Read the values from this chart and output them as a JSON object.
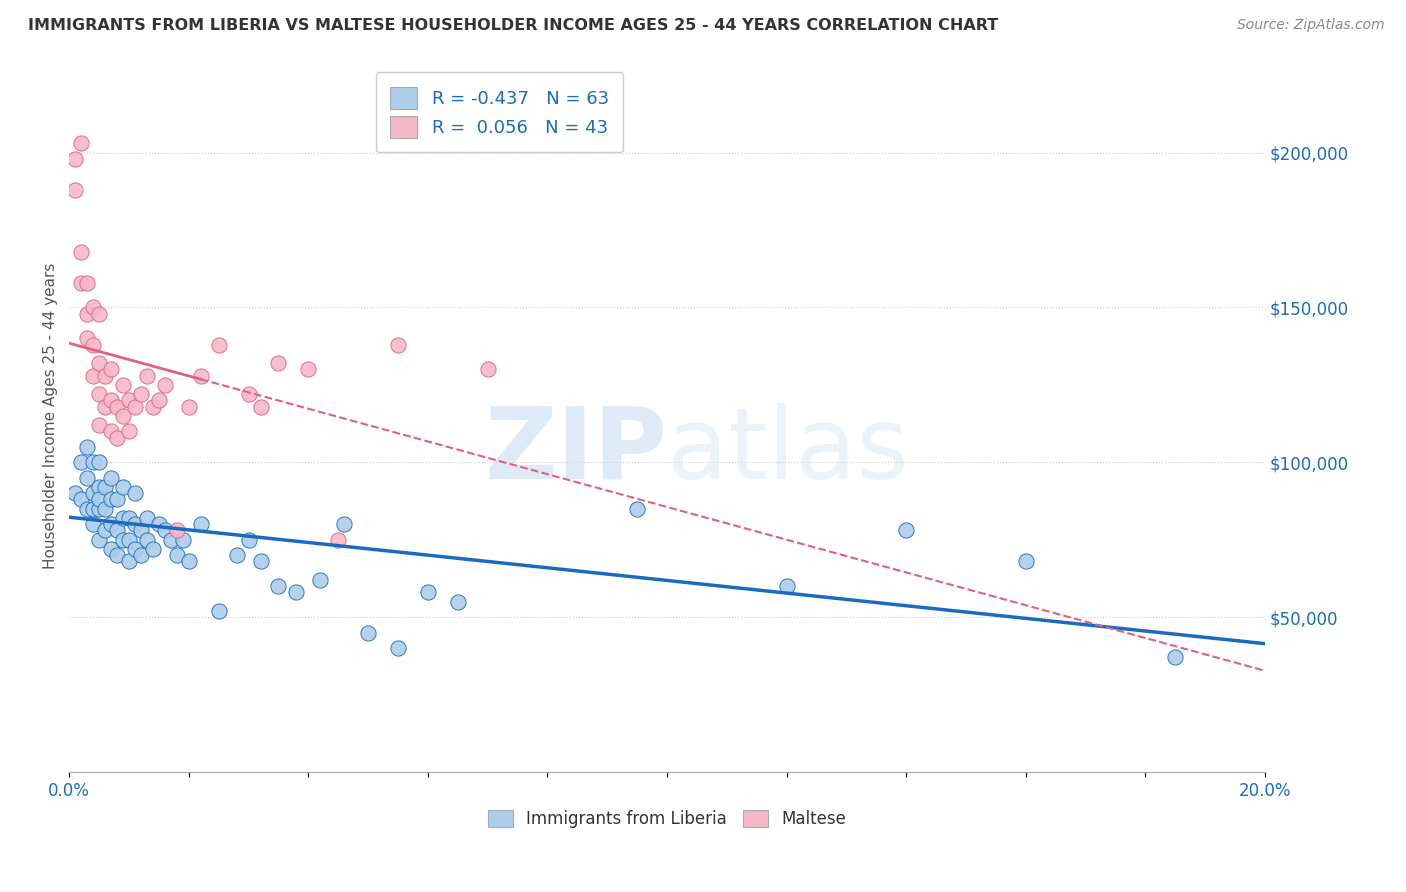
{
  "title": "IMMIGRANTS FROM LIBERIA VS MALTESE HOUSEHOLDER INCOME AGES 25 - 44 YEARS CORRELATION CHART",
  "source": "Source: ZipAtlas.com",
  "ylabel": "Householder Income Ages 25 - 44 years",
  "ytick_labels": [
    "$50,000",
    "$100,000",
    "$150,000",
    "$200,000"
  ],
  "ytick_values": [
    50000,
    100000,
    150000,
    200000
  ],
  "xlim": [
    0.0,
    0.2
  ],
  "ylim": [
    0,
    230000
  ],
  "legend_entry1_r": "R = -0.437",
  "legend_entry1_n": "N = 63",
  "legend_entry2_r": "R =  0.056",
  "legend_entry2_n": "N = 43",
  "legend_label1": "Immigrants from Liberia",
  "legend_label2": "Maltese",
  "color_liberia": "#aecde8",
  "color_maltese": "#f5b8c8",
  "line_color_liberia": "#1a6bbf",
  "line_color_maltese": "#e06080",
  "line_color_maltese_solid": "#e06080",
  "background_color": "#ffffff",
  "watermark_zip": "ZIP",
  "watermark_atlas": "atlas",
  "liberia_x": [
    0.001,
    0.002,
    0.002,
    0.003,
    0.003,
    0.003,
    0.004,
    0.004,
    0.004,
    0.004,
    0.005,
    0.005,
    0.005,
    0.005,
    0.005,
    0.006,
    0.006,
    0.006,
    0.007,
    0.007,
    0.007,
    0.007,
    0.008,
    0.008,
    0.008,
    0.009,
    0.009,
    0.009,
    0.01,
    0.01,
    0.01,
    0.011,
    0.011,
    0.011,
    0.012,
    0.012,
    0.013,
    0.013,
    0.014,
    0.015,
    0.016,
    0.017,
    0.018,
    0.019,
    0.02,
    0.022,
    0.025,
    0.028,
    0.03,
    0.032,
    0.035,
    0.038,
    0.042,
    0.046,
    0.05,
    0.055,
    0.06,
    0.065,
    0.095,
    0.12,
    0.14,
    0.16,
    0.185
  ],
  "liberia_y": [
    90000,
    100000,
    88000,
    85000,
    95000,
    105000,
    80000,
    90000,
    100000,
    85000,
    75000,
    85000,
    92000,
    100000,
    88000,
    78000,
    85000,
    92000,
    72000,
    80000,
    88000,
    95000,
    70000,
    78000,
    88000,
    75000,
    82000,
    92000,
    68000,
    75000,
    82000,
    72000,
    80000,
    90000,
    70000,
    78000,
    75000,
    82000,
    72000,
    80000,
    78000,
    75000,
    70000,
    75000,
    68000,
    80000,
    52000,
    70000,
    75000,
    68000,
    60000,
    58000,
    62000,
    80000,
    45000,
    40000,
    58000,
    55000,
    85000,
    60000,
    78000,
    68000,
    37000
  ],
  "maltese_x": [
    0.001,
    0.001,
    0.002,
    0.002,
    0.002,
    0.003,
    0.003,
    0.003,
    0.004,
    0.004,
    0.004,
    0.005,
    0.005,
    0.005,
    0.005,
    0.006,
    0.006,
    0.007,
    0.007,
    0.007,
    0.008,
    0.008,
    0.009,
    0.009,
    0.01,
    0.01,
    0.011,
    0.012,
    0.013,
    0.014,
    0.015,
    0.016,
    0.018,
    0.02,
    0.022,
    0.025,
    0.03,
    0.032,
    0.035,
    0.04,
    0.045,
    0.055,
    0.07
  ],
  "maltese_y": [
    188000,
    198000,
    158000,
    168000,
    203000,
    140000,
    148000,
    158000,
    128000,
    138000,
    150000,
    112000,
    122000,
    132000,
    148000,
    118000,
    128000,
    110000,
    120000,
    130000,
    108000,
    118000,
    115000,
    125000,
    110000,
    120000,
    118000,
    122000,
    128000,
    118000,
    120000,
    125000,
    78000,
    118000,
    128000,
    138000,
    122000,
    118000,
    132000,
    130000,
    75000,
    138000,
    130000
  ]
}
